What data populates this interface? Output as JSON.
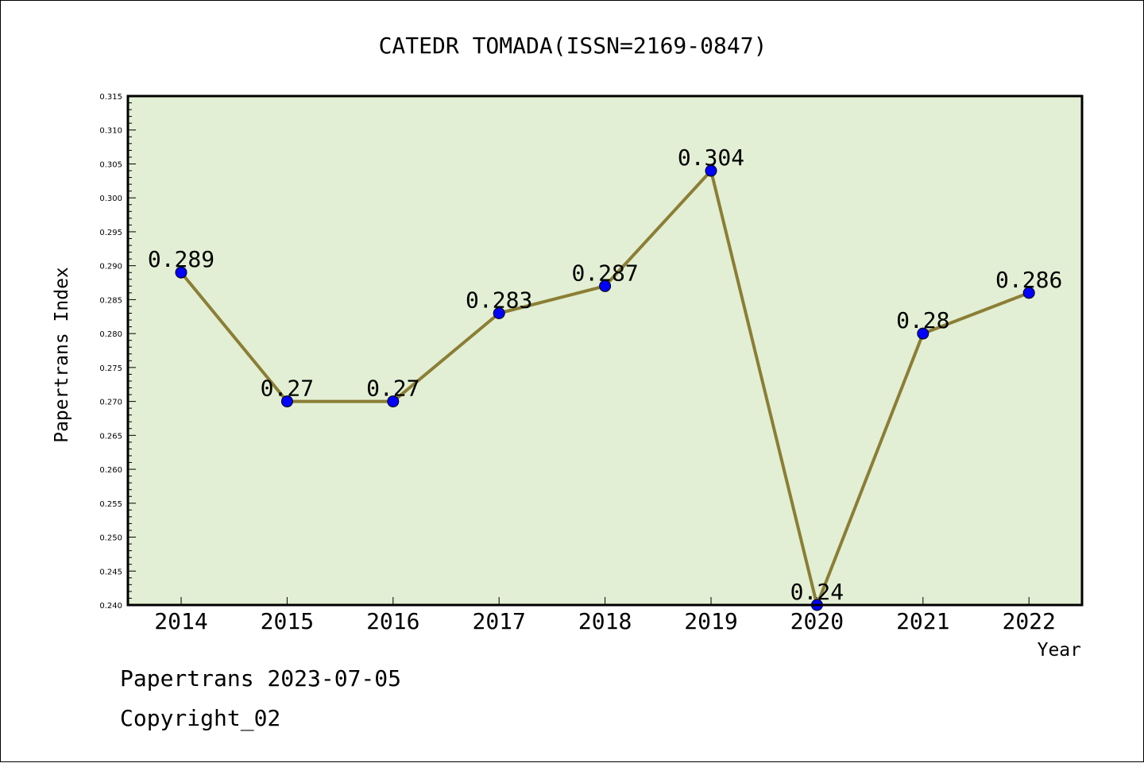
{
  "chart_data": {
    "type": "line",
    "title": "CATEDR TOMADA(ISSN=2169-0847)",
    "xlabel": "Year",
    "ylabel": "Papertrans Index",
    "categories": [
      "2014",
      "2015",
      "2016",
      "2017",
      "2018",
      "2019",
      "2020",
      "2021",
      "2022"
    ],
    "values": [
      0.289,
      0.27,
      0.27,
      0.283,
      0.287,
      0.304,
      0.24,
      0.28,
      0.286
    ],
    "data_labels": [
      "0.289",
      "0.27",
      "0.27",
      "0.283",
      "0.287",
      "0.304",
      "0.24",
      "0.28",
      "0.286"
    ],
    "ylim": [
      0.24,
      0.315
    ],
    "yticks": [
      "0.240",
      "0.245",
      "0.250",
      "0.255",
      "0.260",
      "0.265",
      "0.270",
      "0.275",
      "0.280",
      "0.285",
      "0.290",
      "0.295",
      "0.300",
      "0.305",
      "0.310",
      "0.315"
    ],
    "grid": false,
    "legend": "none",
    "colors": {
      "plot_background": "#e2efd4",
      "line": "#8b7e35",
      "marker": "#0000ff"
    }
  },
  "footer": {
    "line1": "Papertrans 2023-07-05",
    "line2": "Copyright_02"
  }
}
